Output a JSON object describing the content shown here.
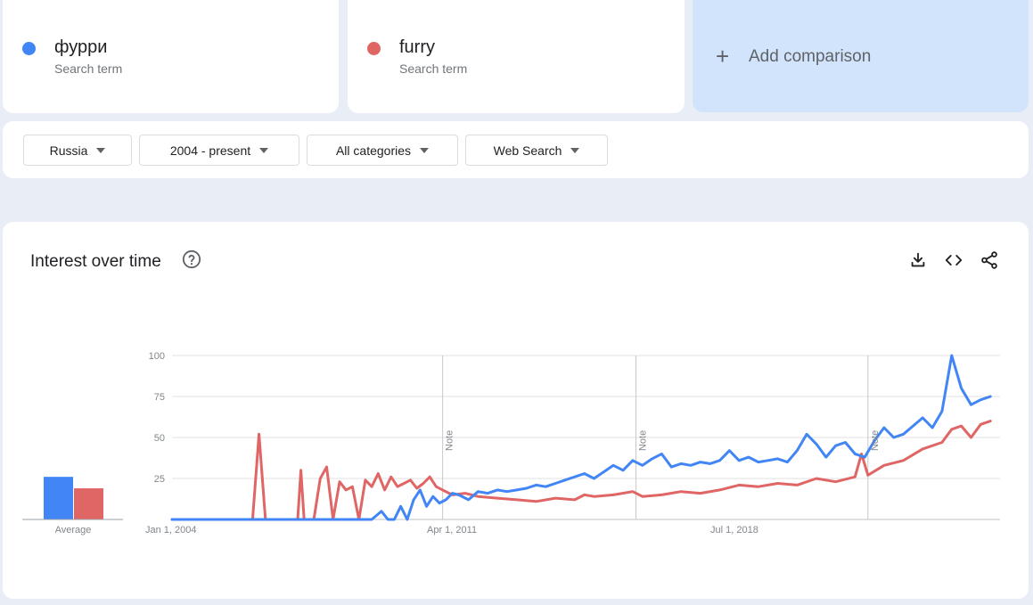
{
  "terms": [
    {
      "name": "фурри",
      "subtitle": "Search term",
      "color": "#4285f4"
    },
    {
      "name": "furry",
      "subtitle": "Search term",
      "color": "#e06666"
    }
  ],
  "add_comparison": {
    "icon": "plus-icon",
    "label": "Add comparison"
  },
  "filters": [
    {
      "label": "Russia"
    },
    {
      "label": "2004 - present"
    },
    {
      "label": "All categories"
    },
    {
      "label": "Web Search"
    }
  ],
  "chart_section": {
    "title": "Interest over time",
    "help_icon": "help-circle-icon",
    "tools": [
      "download-icon",
      "embed-code-icon",
      "share-icon"
    ]
  },
  "chart_data": {
    "type": "line",
    "title": "Interest over time",
    "y_ticks": [
      "100",
      "75",
      "50",
      "25"
    ],
    "ylim": [
      0,
      100
    ],
    "x_ticks": [
      "Jan 1, 2004",
      "Apr 1, 2011",
      "Jul 1, 2018"
    ],
    "x_range": [
      "2004-01",
      "2025-06"
    ],
    "notes": [
      {
        "label": "Note",
        "date": "2011-01"
      },
      {
        "label": "Note",
        "date": "2016-01"
      },
      {
        "label": "Note",
        "date": "2022-01"
      }
    ],
    "average": {
      "label": "Average",
      "values": [
        26,
        19
      ]
    },
    "series": [
      {
        "name": "фурри",
        "color": "#4285f4",
        "points": [
          [
            "2004-01",
            0
          ],
          [
            "2007-06",
            0
          ],
          [
            "2008-03",
            0
          ],
          [
            "2008-06",
            0
          ],
          [
            "2009-03",
            0
          ],
          [
            "2009-06",
            5
          ],
          [
            "2009-08",
            0
          ],
          [
            "2009-10",
            0
          ],
          [
            "2009-12",
            8
          ],
          [
            "2010-02",
            0
          ],
          [
            "2010-04",
            12
          ],
          [
            "2010-06",
            18
          ],
          [
            "2010-08",
            8
          ],
          [
            "2010-10",
            14
          ],
          [
            "2010-12",
            10
          ],
          [
            "2011-02",
            12
          ],
          [
            "2011-04",
            16
          ],
          [
            "2011-06",
            15
          ],
          [
            "2011-09",
            12
          ],
          [
            "2011-12",
            17
          ],
          [
            "2012-03",
            16
          ],
          [
            "2012-06",
            18
          ],
          [
            "2012-09",
            17
          ],
          [
            "2012-12",
            18
          ],
          [
            "2013-03",
            19
          ],
          [
            "2013-06",
            21
          ],
          [
            "2013-09",
            20
          ],
          [
            "2013-12",
            22
          ],
          [
            "2014-03",
            24
          ],
          [
            "2014-06",
            26
          ],
          [
            "2014-09",
            28
          ],
          [
            "2014-12",
            25
          ],
          [
            "2015-03",
            29
          ],
          [
            "2015-06",
            33
          ],
          [
            "2015-09",
            30
          ],
          [
            "2015-12",
            36
          ],
          [
            "2016-03",
            33
          ],
          [
            "2016-06",
            37
          ],
          [
            "2016-09",
            40
          ],
          [
            "2016-12",
            32
          ],
          [
            "2017-03",
            34
          ],
          [
            "2017-06",
            33
          ],
          [
            "2017-09",
            35
          ],
          [
            "2017-12",
            34
          ],
          [
            "2018-03",
            36
          ],
          [
            "2018-06",
            42
          ],
          [
            "2018-09",
            36
          ],
          [
            "2018-12",
            38
          ],
          [
            "2019-03",
            35
          ],
          [
            "2019-06",
            36
          ],
          [
            "2019-09",
            37
          ],
          [
            "2019-12",
            35
          ],
          [
            "2020-03",
            42
          ],
          [
            "2020-06",
            52
          ],
          [
            "2020-09",
            46
          ],
          [
            "2020-12",
            38
          ],
          [
            "2021-03",
            45
          ],
          [
            "2021-06",
            47
          ],
          [
            "2021-09",
            40
          ],
          [
            "2021-12",
            38
          ],
          [
            "2022-03",
            48
          ],
          [
            "2022-06",
            56
          ],
          [
            "2022-09",
            50
          ],
          [
            "2022-12",
            52
          ],
          [
            "2023-03",
            57
          ],
          [
            "2023-06",
            62
          ],
          [
            "2023-09",
            56
          ],
          [
            "2023-12",
            66
          ],
          [
            "2024-03",
            100
          ],
          [
            "2024-06",
            80
          ],
          [
            "2024-09",
            70
          ],
          [
            "2024-12",
            73
          ],
          [
            "2025-03",
            75
          ]
        ]
      },
      {
        "name": "furry",
        "color": "#e06666",
        "points": [
          [
            "2004-01",
            0
          ],
          [
            "2006-02",
            0
          ],
          [
            "2006-04",
            52
          ],
          [
            "2006-06",
            0
          ],
          [
            "2007-04",
            0
          ],
          [
            "2007-05",
            30
          ],
          [
            "2007-06",
            0
          ],
          [
            "2007-09",
            0
          ],
          [
            "2007-11",
            25
          ],
          [
            "2008-01",
            32
          ],
          [
            "2008-03",
            0
          ],
          [
            "2008-05",
            23
          ],
          [
            "2008-07",
            18
          ],
          [
            "2008-09",
            20
          ],
          [
            "2008-11",
            0
          ],
          [
            "2009-01",
            24
          ],
          [
            "2009-03",
            20
          ],
          [
            "2009-05",
            28
          ],
          [
            "2009-07",
            18
          ],
          [
            "2009-09",
            26
          ],
          [
            "2009-11",
            20
          ],
          [
            "2010-01",
            22
          ],
          [
            "2010-03",
            24
          ],
          [
            "2010-05",
            19
          ],
          [
            "2010-07",
            22
          ],
          [
            "2010-09",
            26
          ],
          [
            "2010-11",
            20
          ],
          [
            "2011-01",
            18
          ],
          [
            "2011-04",
            15
          ],
          [
            "2011-08",
            16
          ],
          [
            "2011-12",
            14
          ],
          [
            "2012-06",
            13
          ],
          [
            "2012-12",
            12
          ],
          [
            "2013-06",
            11
          ],
          [
            "2013-12",
            13
          ],
          [
            "2014-06",
            12
          ],
          [
            "2014-09",
            15
          ],
          [
            "2014-12",
            14
          ],
          [
            "2015-06",
            15
          ],
          [
            "2015-12",
            17
          ],
          [
            "2016-03",
            14
          ],
          [
            "2016-09",
            15
          ],
          [
            "2017-03",
            17
          ],
          [
            "2017-09",
            16
          ],
          [
            "2018-03",
            18
          ],
          [
            "2018-09",
            21
          ],
          [
            "2019-03",
            20
          ],
          [
            "2019-09",
            22
          ],
          [
            "2020-03",
            21
          ],
          [
            "2020-09",
            25
          ],
          [
            "2021-03",
            23
          ],
          [
            "2021-09",
            26
          ],
          [
            "2021-11",
            40
          ],
          [
            "2022-01",
            27
          ],
          [
            "2022-06",
            33
          ],
          [
            "2022-12",
            36
          ],
          [
            "2023-06",
            43
          ],
          [
            "2023-12",
            47
          ],
          [
            "2024-03",
            55
          ],
          [
            "2024-06",
            57
          ],
          [
            "2024-09",
            50
          ],
          [
            "2024-12",
            58
          ],
          [
            "2025-03",
            60
          ]
        ]
      }
    ]
  }
}
